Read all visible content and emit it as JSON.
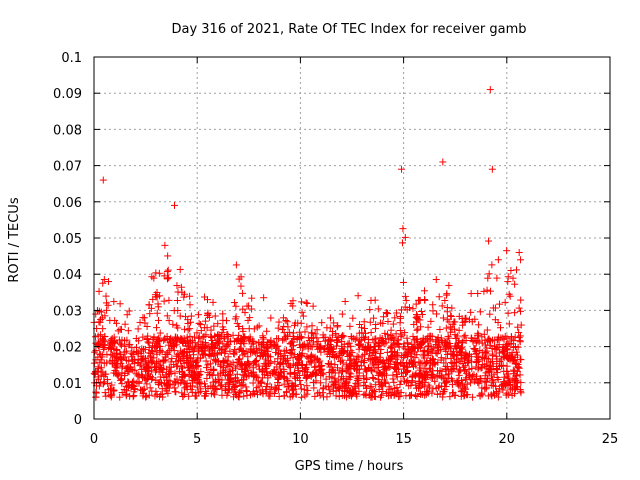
{
  "chart_data": {
    "type": "scatter",
    "title": "Day 316 of 2021, Rate Of TEC Index for receiver gamb",
    "xlabel": "GPS time / hours",
    "ylabel": "ROTI / TECUs",
    "xlim": [
      0,
      25
    ],
    "ylim": [
      0,
      0.1
    ],
    "xticks": [
      "0",
      "5",
      "10",
      "15",
      "20",
      "25"
    ],
    "yticks": [
      "0",
      "0.01",
      "0.02",
      "0.03",
      "0.04",
      "0.05",
      "0.06",
      "0.07",
      "0.08",
      "0.09",
      "0.1"
    ],
    "grid": true,
    "marker": "+",
    "color": "#ff0000",
    "data_extent_hours": [
      0,
      20.7
    ],
    "notable_points": [
      {
        "x": 0.45,
        "y": 0.066
      },
      {
        "x": 3.9,
        "y": 0.059
      },
      {
        "x": 14.9,
        "y": 0.069
      },
      {
        "x": 16.9,
        "y": 0.071
      },
      {
        "x": 19.2,
        "y": 0.091
      },
      {
        "x": 19.3,
        "y": 0.069
      },
      {
        "x": 20.6,
        "y": 0.046
      }
    ],
    "activity_profile": [
      {
        "x": 0.0,
        "level": 0.03
      },
      {
        "x": 0.5,
        "level": 0.045
      },
      {
        "x": 1.0,
        "level": 0.03
      },
      {
        "x": 2.0,
        "level": 0.025
      },
      {
        "x": 3.3,
        "level": 0.05
      },
      {
        "x": 3.9,
        "level": 0.052
      },
      {
        "x": 4.5,
        "level": 0.032
      },
      {
        "x": 6.0,
        "level": 0.032
      },
      {
        "x": 6.8,
        "level": 0.04
      },
      {
        "x": 8.0,
        "level": 0.032
      },
      {
        "x": 10.0,
        "level": 0.03
      },
      {
        "x": 12.0,
        "level": 0.032
      },
      {
        "x": 13.0,
        "level": 0.03
      },
      {
        "x": 14.3,
        "level": 0.033
      },
      {
        "x": 15.0,
        "level": 0.05
      },
      {
        "x": 15.5,
        "level": 0.036
      },
      {
        "x": 16.5,
        "level": 0.04
      },
      {
        "x": 17.5,
        "level": 0.03
      },
      {
        "x": 18.5,
        "level": 0.033
      },
      {
        "x": 19.3,
        "level": 0.05
      },
      {
        "x": 19.7,
        "level": 0.04
      },
      {
        "x": 20.5,
        "level": 0.05
      },
      {
        "x": 20.7,
        "level": 0.04
      }
    ]
  }
}
